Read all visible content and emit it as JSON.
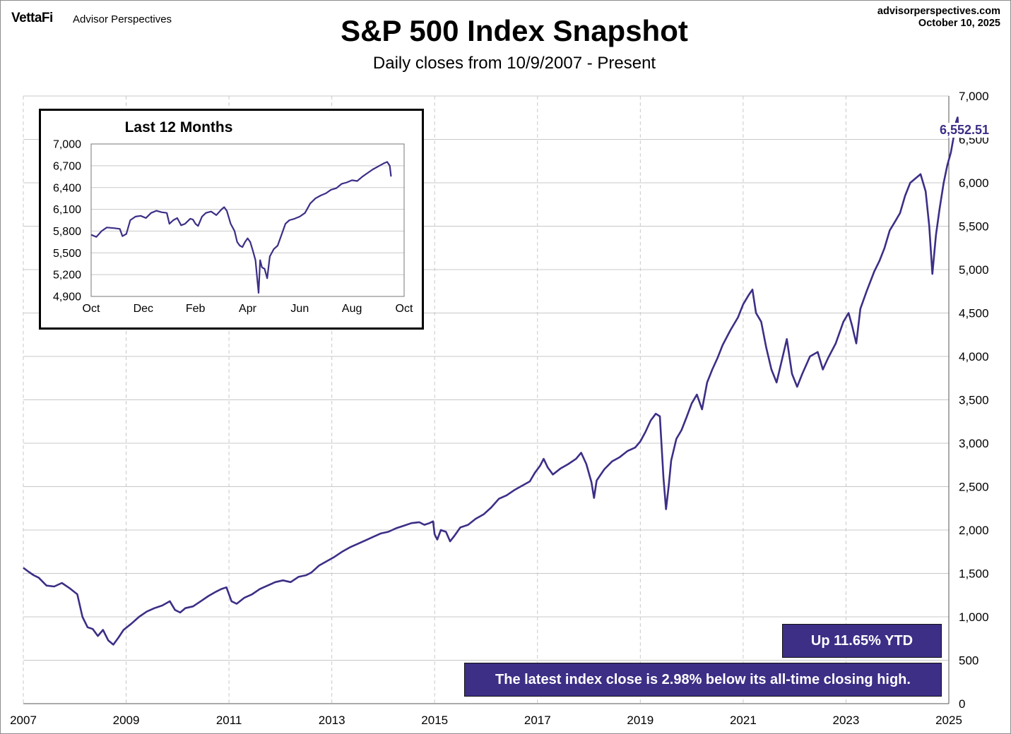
{
  "header": {
    "logo": "VettaFi",
    "brand": "Advisor Perspectives",
    "site": "advisorperspectives.com",
    "date": "October 10, 2025"
  },
  "badges": {
    "ytd": "Up 11.65% YTD",
    "high": "The latest index close is 2.98% below its all-time closing high."
  },
  "colors": {
    "line": "#3d2e86",
    "grid": "#c8c8c8"
  },
  "chart_data": [
    {
      "type": "line",
      "title": "S&P 500 Index Snapshot",
      "subtitle": "Daily closes from 10/9/2007 - Present",
      "x_ticks": [
        "2007",
        "2009",
        "2011",
        "2013",
        "2015",
        "2017",
        "2019",
        "2021",
        "2023",
        "2025"
      ],
      "y_ticks": [
        "0",
        "500",
        "1,000",
        "1,500",
        "2,000",
        "2,500",
        "3,000",
        "3,500",
        "4,000",
        "4,500",
        "5,000",
        "5,500",
        "6,000",
        "6,500",
        "7,000"
      ],
      "xlim": [
        2007.0,
        2025.0
      ],
      "ylim": [
        0,
        7000
      ],
      "grid": true,
      "last_value_label": "6,552.51",
      "series": [
        {
          "points": [
            [
              2007.0,
              1565
            ],
            [
              2007.1,
              1520
            ],
            [
              2007.2,
              1480
            ],
            [
              2007.3,
              1450
            ],
            [
              2007.45,
              1360
            ],
            [
              2007.6,
              1350
            ],
            [
              2007.75,
              1390
            ],
            [
              2007.9,
              1330
            ],
            [
              2008.05,
              1260
            ],
            [
              2008.15,
              1000
            ],
            [
              2008.25,
              880
            ],
            [
              2008.35,
              860
            ],
            [
              2008.45,
              780
            ],
            [
              2008.55,
              850
            ],
            [
              2008.65,
              730
            ],
            [
              2008.75,
              680
            ],
            [
              2008.85,
              760
            ],
            [
              2008.95,
              850
            ],
            [
              2009.1,
              920
            ],
            [
              2009.25,
              1000
            ],
            [
              2009.4,
              1060
            ],
            [
              2009.55,
              1100
            ],
            [
              2009.7,
              1130
            ],
            [
              2009.85,
              1180
            ],
            [
              2009.95,
              1080
            ],
            [
              2010.05,
              1050
            ],
            [
              2010.15,
              1100
            ],
            [
              2010.3,
              1120
            ],
            [
              2010.45,
              1180
            ],
            [
              2010.6,
              1240
            ],
            [
              2010.75,
              1290
            ],
            [
              2010.85,
              1320
            ],
            [
              2010.95,
              1340
            ],
            [
              2011.05,
              1180
            ],
            [
              2011.15,
              1150
            ],
            [
              2011.3,
              1220
            ],
            [
              2011.45,
              1260
            ],
            [
              2011.6,
              1320
            ],
            [
              2011.75,
              1360
            ],
            [
              2011.9,
              1400
            ],
            [
              2012.05,
              1420
            ],
            [
              2012.2,
              1400
            ],
            [
              2012.35,
              1460
            ],
            [
              2012.5,
              1480
            ],
            [
              2012.6,
              1510
            ],
            [
              2012.75,
              1590
            ],
            [
              2012.9,
              1640
            ],
            [
              2013.05,
              1690
            ],
            [
              2013.2,
              1750
            ],
            [
              2013.35,
              1800
            ],
            [
              2013.5,
              1840
            ],
            [
              2013.65,
              1880
            ],
            [
              2013.8,
              1920
            ],
            [
              2013.95,
              1960
            ],
            [
              2014.1,
              1980
            ],
            [
              2014.25,
              2020
            ],
            [
              2014.4,
              2050
            ],
            [
              2014.55,
              2080
            ],
            [
              2014.7,
              2090
            ],
            [
              2014.8,
              2060
            ],
            [
              2014.9,
              2080
            ],
            [
              2014.97,
              2100
            ],
            [
              2015.0,
              1950
            ],
            [
              2015.05,
              1890
            ],
            [
              2015.12,
              2000
            ],
            [
              2015.22,
              1980
            ],
            [
              2015.3,
              1870
            ],
            [
              2015.38,
              1930
            ],
            [
              2015.5,
              2030
            ],
            [
              2015.65,
              2060
            ],
            [
              2015.8,
              2130
            ],
            [
              2015.95,
              2180
            ],
            [
              2016.1,
              2260
            ],
            [
              2016.25,
              2360
            ],
            [
              2016.4,
              2400
            ],
            [
              2016.55,
              2460
            ],
            [
              2016.7,
              2510
            ],
            [
              2016.85,
              2560
            ],
            [
              2016.95,
              2660
            ],
            [
              2017.05,
              2740
            ],
            [
              2017.12,
              2820
            ],
            [
              2017.2,
              2720
            ],
            [
              2017.3,
              2640
            ],
            [
              2017.45,
              2710
            ],
            [
              2017.6,
              2760
            ],
            [
              2017.75,
              2820
            ],
            [
              2017.85,
              2890
            ],
            [
              2017.95,
              2760
            ],
            [
              2018.05,
              2550
            ],
            [
              2018.1,
              2370
            ],
            [
              2018.15,
              2570
            ],
            [
              2018.3,
              2700
            ],
            [
              2018.45,
              2790
            ],
            [
              2018.6,
              2840
            ],
            [
              2018.75,
              2910
            ],
            [
              2018.9,
              2950
            ],
            [
              2019.0,
              3020
            ],
            [
              2019.1,
              3130
            ],
            [
              2019.2,
              3260
            ],
            [
              2019.3,
              3340
            ],
            [
              2019.38,
              3310
            ],
            [
              2019.45,
              2600
            ],
            [
              2019.5,
              2240
            ],
            [
              2019.55,
              2500
            ],
            [
              2019.6,
              2800
            ],
            [
              2019.7,
              3050
            ],
            [
              2019.8,
              3150
            ],
            [
              2019.9,
              3300
            ],
            [
              2020.0,
              3460
            ],
            [
              2020.1,
              3560
            ],
            [
              2020.2,
              3390
            ],
            [
              2020.3,
              3700
            ],
            [
              2020.4,
              3850
            ],
            [
              2020.5,
              3980
            ],
            [
              2020.6,
              4130
            ],
            [
              2020.75,
              4300
            ],
            [
              2020.9,
              4450
            ],
            [
              2021.0,
              4600
            ],
            [
              2021.1,
              4700
            ],
            [
              2021.18,
              4770
            ],
            [
              2021.25,
              4500
            ],
            [
              2021.35,
              4400
            ],
            [
              2021.45,
              4100
            ],
            [
              2021.55,
              3850
            ],
            [
              2021.65,
              3700
            ],
            [
              2021.75,
              3950
            ],
            [
              2021.85,
              4200
            ],
            [
              2021.95,
              3800
            ],
            [
              2022.05,
              3650
            ],
            [
              2022.15,
              3800
            ],
            [
              2022.3,
              4000
            ],
            [
              2022.45,
              4050
            ],
            [
              2022.55,
              3850
            ],
            [
              2022.65,
              3980
            ],
            [
              2022.8,
              4150
            ],
            [
              2022.95,
              4400
            ],
            [
              2023.05,
              4500
            ],
            [
              2023.12,
              4350
            ],
            [
              2023.2,
              4150
            ],
            [
              2023.28,
              4550
            ],
            [
              2023.4,
              4750
            ],
            [
              2023.55,
              4980
            ],
            [
              2023.65,
              5100
            ],
            [
              2023.75,
              5250
            ],
            [
              2023.85,
              5450
            ],
            [
              2023.95,
              5550
            ],
            [
              2024.05,
              5650
            ],
            [
              2024.15,
              5850
            ],
            [
              2024.25,
              6000
            ],
            [
              2024.35,
              6050
            ],
            [
              2024.45,
              6100
            ],
            [
              2024.55,
              5900
            ],
            [
              2024.62,
              5500
            ],
            [
              2024.68,
              4950
            ],
            [
              2024.75,
              5400
            ],
            [
              2024.82,
              5700
            ],
            [
              2024.9,
              6000
            ],
            [
              2024.97,
              6200
            ],
            [
              2025.04,
              6350
            ],
            [
              2025.1,
              6550
            ],
            [
              2025.14,
              6700
            ],
            [
              2025.17,
              6753
            ],
            [
              2025.19,
              6552.51
            ]
          ]
        }
      ]
    },
    {
      "type": "line",
      "title": "Last 12 Months",
      "x_ticks": [
        "Oct",
        "Dec",
        "Feb",
        "Apr",
        "Jun",
        "Aug",
        "Oct"
      ],
      "y_ticks": [
        "4,900",
        "5,200",
        "5,500",
        "5,800",
        "6,100",
        "6,400",
        "6,700",
        "7,000"
      ],
      "xlim": [
        0,
        12
      ],
      "ylim": [
        4900,
        7000
      ],
      "grid": true,
      "series": [
        {
          "points": [
            [
              0,
              5750
            ],
            [
              0.2,
              5720
            ],
            [
              0.4,
              5800
            ],
            [
              0.6,
              5850
            ],
            [
              0.9,
              5840
            ],
            [
              1.1,
              5830
            ],
            [
              1.2,
              5730
            ],
            [
              1.35,
              5760
            ],
            [
              1.5,
              5950
            ],
            [
              1.7,
              6000
            ],
            [
              1.9,
              6010
            ],
            [
              2.1,
              5980
            ],
            [
              2.3,
              6050
            ],
            [
              2.5,
              6080
            ],
            [
              2.7,
              6060
            ],
            [
              2.9,
              6050
            ],
            [
              3.0,
              5900
            ],
            [
              3.15,
              5950
            ],
            [
              3.3,
              5980
            ],
            [
              3.45,
              5880
            ],
            [
              3.6,
              5900
            ],
            [
              3.8,
              5970
            ],
            [
              3.9,
              5960
            ],
            [
              4.0,
              5900
            ],
            [
              4.1,
              5870
            ],
            [
              4.25,
              6000
            ],
            [
              4.4,
              6050
            ],
            [
              4.6,
              6070
            ],
            [
              4.8,
              6020
            ],
            [
              5.0,
              6100
            ],
            [
              5.1,
              6130
            ],
            [
              5.2,
              6080
            ],
            [
              5.35,
              5900
            ],
            [
              5.5,
              5800
            ],
            [
              5.6,
              5650
            ],
            [
              5.7,
              5600
            ],
            [
              5.8,
              5580
            ],
            [
              5.9,
              5650
            ],
            [
              6.0,
              5700
            ],
            [
              6.1,
              5650
            ],
            [
              6.2,
              5530
            ],
            [
              6.3,
              5400
            ],
            [
              6.38,
              5100
            ],
            [
              6.42,
              4950
            ],
            [
              6.48,
              5400
            ],
            [
              6.55,
              5300
            ],
            [
              6.65,
              5280
            ],
            [
              6.75,
              5150
            ],
            [
              6.85,
              5450
            ],
            [
              7.0,
              5550
            ],
            [
              7.15,
              5600
            ],
            [
              7.3,
              5750
            ],
            [
              7.45,
              5900
            ],
            [
              7.6,
              5950
            ],
            [
              7.8,
              5970
            ],
            [
              8.0,
              6000
            ],
            [
              8.2,
              6050
            ],
            [
              8.4,
              6180
            ],
            [
              8.6,
              6250
            ],
            [
              8.8,
              6290
            ],
            [
              9.0,
              6320
            ],
            [
              9.2,
              6370
            ],
            [
              9.4,
              6390
            ],
            [
              9.6,
              6450
            ],
            [
              9.8,
              6470
            ],
            [
              10.0,
              6500
            ],
            [
              10.2,
              6490
            ],
            [
              10.4,
              6550
            ],
            [
              10.6,
              6600
            ],
            [
              10.8,
              6650
            ],
            [
              11.0,
              6690
            ],
            [
              11.2,
              6730
            ],
            [
              11.35,
              6753
            ],
            [
              11.45,
              6700
            ],
            [
              11.5,
              6552
            ]
          ]
        }
      ]
    }
  ]
}
